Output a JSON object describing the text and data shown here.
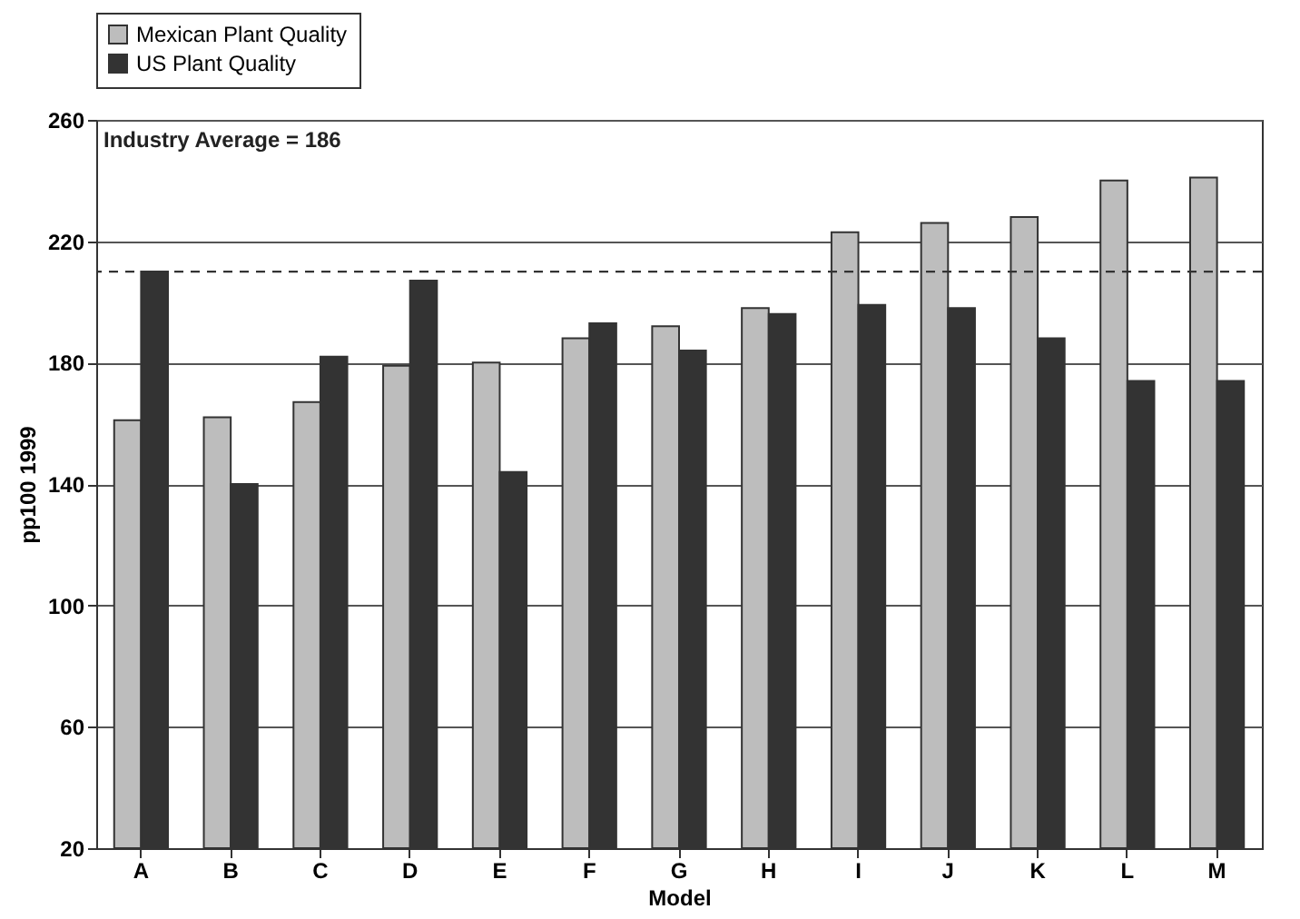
{
  "chart_data": {
    "type": "bar",
    "xlabel": "Model",
    "ylabel": "pp100 1999",
    "categories": [
      "A",
      "B",
      "C",
      "D",
      "E",
      "F",
      "G",
      "H",
      "I",
      "J",
      "K",
      "L",
      "M"
    ],
    "series": [
      {
        "name": "Mexican Plant Quality",
        "color": "#bdbdbd",
        "values": [
          161,
          162,
          167,
          179,
          180,
          188,
          192,
          198,
          223,
          226,
          228,
          240,
          241
        ]
      },
      {
        "name": "US Plant Quality",
        "color": "#333333",
        "values": [
          210,
          140,
          182,
          207,
          144,
          193,
          184,
          196,
          199,
          198,
          188,
          174,
          174
        ]
      }
    ],
    "ylim": [
      20,
      260
    ],
    "yticks": [
      20,
      60,
      100,
      140,
      180,
      220,
      260
    ],
    "ref_lines": [
      {
        "axis": "y",
        "value": 210,
        "color": "#333333",
        "line_style": "dashed"
      }
    ],
    "annotations": [
      "Industry Average = 186"
    ],
    "grid": "y",
    "legend": "top"
  }
}
